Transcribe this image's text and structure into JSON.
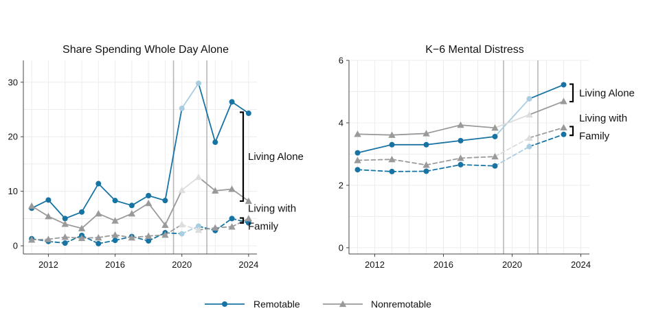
{
  "colors": {
    "remotable": "#1673a3",
    "remotable_light": "#a9cde0",
    "nonremotable": "#9a9a9a",
    "nonremotable_light": "#dddddd",
    "vline": "#b7b7b7",
    "grid": "#ececec",
    "axis": "#444444"
  },
  "legend": {
    "items": [
      {
        "label": "Remotable",
        "marker": "circle",
        "color": "#1673a3"
      },
      {
        "label": "Nonremotable",
        "marker": "triangle",
        "color": "#9a9a9a"
      }
    ],
    "placement": "bottom-center"
  },
  "chart_data": [
    {
      "type": "line",
      "title": "Share Spending Whole Day Alone",
      "xlabel": "",
      "ylabel": "",
      "xlim": [
        2010.5,
        2024.5
      ],
      "ylim": [
        -1.5,
        34
      ],
      "xticks": [
        2012,
        2016,
        2020,
        2024
      ],
      "yticks": [
        0,
        10,
        20,
        30
      ],
      "grid": true,
      "vlines": [
        2019.5,
        2021.5
      ],
      "light_range": [
        2019.5,
        2021.5
      ],
      "series": [
        {
          "group": "Remotable",
          "household": "alone",
          "style": "solid",
          "marker": "circle",
          "x": [
            2011,
            2012,
            2013,
            2014,
            2015,
            2016,
            2017,
            2018,
            2019,
            2020,
            2021,
            2022,
            2023,
            2024
          ],
          "y": [
            6.9,
            8.4,
            5.0,
            6.2,
            11.4,
            8.3,
            7.4,
            9.2,
            8.3,
            25.2,
            29.8,
            19.0,
            26.4,
            24.3
          ]
        },
        {
          "group": "Nonremotable",
          "household": "alone",
          "style": "solid",
          "marker": "triangle",
          "x": [
            2011,
            2012,
            2013,
            2014,
            2015,
            2016,
            2017,
            2018,
            2019,
            2020,
            2021,
            2022,
            2023,
            2024
          ],
          "y": [
            7.3,
            5.4,
            4.0,
            3.2,
            5.9,
            4.6,
            5.9,
            7.8,
            3.8,
            10.2,
            12.6,
            10.1,
            10.4,
            8.2
          ]
        },
        {
          "group": "Remotable",
          "household": "family",
          "style": "dashed",
          "marker": "circle",
          "x": [
            2011,
            2012,
            2013,
            2014,
            2015,
            2016,
            2017,
            2018,
            2019,
            2020,
            2021,
            2022,
            2023,
            2024
          ],
          "y": [
            1.3,
            0.8,
            0.5,
            1.9,
            0.4,
            1.0,
            1.7,
            0.9,
            2.4,
            2.2,
            3.6,
            2.8,
            5.0,
            4.2
          ]
        },
        {
          "group": "Nonremotable",
          "household": "family",
          "style": "dashed",
          "marker": "triangle",
          "x": [
            2011,
            2012,
            2013,
            2014,
            2015,
            2016,
            2017,
            2018,
            2019,
            2020,
            2021,
            2022,
            2023,
            2024
          ],
          "y": [
            1.1,
            1.2,
            1.6,
            1.4,
            1.5,
            2.0,
            1.5,
            1.8,
            2.0,
            3.9,
            2.9,
            3.3,
            3.5,
            5.0
          ]
        }
      ],
      "annotations": [
        {
          "label": "Living Alone",
          "bracket": [
            8.2,
            24.5
          ]
        },
        {
          "label": "Living with",
          "label2": "Family",
          "bracket": [
            4.2,
            5.1
          ]
        }
      ]
    },
    {
      "type": "line",
      "title": "K−6 Mental Distress",
      "xlabel": "",
      "ylabel": "",
      "xlim": [
        2010.5,
        2024.5
      ],
      "ylim": [
        -0.2,
        6.0
      ],
      "xticks": [
        2012,
        2016,
        2020,
        2024
      ],
      "yticks": [
        0,
        2,
        4,
        6
      ],
      "grid": true,
      "vlines": [
        2019.5,
        2021.5
      ],
      "light_range": [
        2019.5,
        2021.5
      ],
      "series": [
        {
          "group": "Remotable",
          "household": "alone",
          "style": "solid",
          "marker": "circle",
          "x": [
            2011,
            2013,
            2015,
            2017,
            2019,
            2021,
            2023
          ],
          "y": [
            3.04,
            3.3,
            3.3,
            3.43,
            3.56,
            4.77,
            5.22
          ]
        },
        {
          "group": "Nonremotable",
          "household": "alone",
          "style": "solid",
          "marker": "triangle",
          "x": [
            2011,
            2013,
            2015,
            2017,
            2019,
            2021,
            2023
          ],
          "y": [
            3.64,
            3.61,
            3.66,
            3.93,
            3.84,
            4.26,
            4.69
          ]
        },
        {
          "group": "Nonremotable",
          "household": "family",
          "style": "dashed",
          "marker": "triangle",
          "x": [
            2011,
            2013,
            2015,
            2017,
            2019,
            2021,
            2023
          ],
          "y": [
            2.8,
            2.83,
            2.65,
            2.87,
            2.92,
            3.52,
            3.85
          ]
        },
        {
          "group": "Remotable",
          "household": "family",
          "style": "dashed",
          "marker": "circle",
          "x": [
            2011,
            2013,
            2015,
            2017,
            2019,
            2021,
            2023
          ],
          "y": [
            2.5,
            2.44,
            2.45,
            2.66,
            2.62,
            3.24,
            3.63
          ]
        }
      ],
      "annotations": [
        {
          "label": "Living Alone",
          "bracket": [
            4.68,
            5.24
          ]
        },
        {
          "label": "Living with",
          "label2": "Family",
          "bracket": [
            3.6,
            3.88
          ]
        }
      ]
    }
  ]
}
